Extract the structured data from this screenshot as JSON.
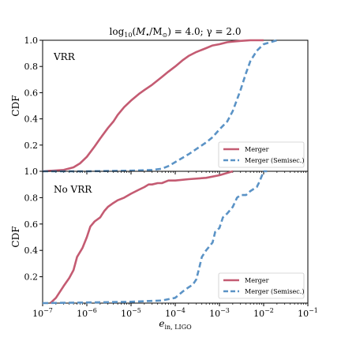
{
  "chart_data": [
    {
      "type": "line",
      "panel": "top",
      "title": "log10(M•/M⊙) = 4.0; γ = 2.0",
      "title_parts": {
        "log": "log",
        "log_sub": "10",
        "open": "(",
        "M": "M",
        "bullet": "•",
        "slash": "/M",
        "sun": "⊙",
        "rest": ") = 4.0; γ = 2.0"
      },
      "annotation": "VRR",
      "ylabel": "CDF",
      "xscale": "log",
      "xlim": [
        1e-07,
        0.1
      ],
      "ylim": [
        0.0,
        1.0
      ],
      "yticks": [
        "0.2",
        "0.4",
        "0.6",
        "0.8",
        "1.0"
      ],
      "legend": {
        "placement": "lower-right",
        "entries": [
          "Merger",
          "Merger (Semisec.)"
        ]
      },
      "colors": {
        "merger": "#c45b72",
        "semisec": "#5b93c6"
      },
      "series": [
        {
          "name": "Merger",
          "style": "solid",
          "x": [
            1e-07,
            3e-07,
            5e-07,
            7e-07,
            1e-06,
            1.5e-06,
            2e-06,
            3e-06,
            4e-06,
            5e-06,
            7e-06,
            1e-05,
            1.5e-05,
            2e-05,
            3e-05,
            5e-05,
            7e-05,
            0.0001,
            0.00015,
            0.0002,
            0.0003,
            0.0005,
            0.0007,
            0.001,
            0.0015,
            0.002,
            0.003,
            0.005,
            0.007,
            0.01
          ],
          "y": [
            0.0,
            0.01,
            0.03,
            0.06,
            0.11,
            0.19,
            0.25,
            0.33,
            0.38,
            0.43,
            0.49,
            0.54,
            0.59,
            0.62,
            0.66,
            0.72,
            0.76,
            0.8,
            0.85,
            0.88,
            0.91,
            0.94,
            0.96,
            0.97,
            0.985,
            0.99,
            0.995,
            1.0,
            1.0,
            1.0
          ]
        },
        {
          "name": "Merger (Semisec.)",
          "style": "dashed",
          "x": [
            1e-07,
            1e-06,
            1e-05,
            3e-05,
            5e-05,
            7e-05,
            0.0001,
            0.0002,
            0.0003,
            0.0005,
            0.0007,
            0.001,
            0.0015,
            0.002,
            0.003,
            0.004,
            0.005,
            0.007,
            0.01,
            0.02
          ],
          "y": [
            0.0,
            0.0,
            0.005,
            0.01,
            0.02,
            0.04,
            0.07,
            0.13,
            0.17,
            0.22,
            0.26,
            0.32,
            0.38,
            0.46,
            0.62,
            0.75,
            0.84,
            0.92,
            0.97,
            1.0
          ]
        }
      ]
    },
    {
      "type": "line",
      "panel": "bottom",
      "annotation": "No VRR",
      "ylabel": "CDF",
      "xlabel": "e_in,LIGO",
      "xlabel_parts": {
        "main": "e",
        "sub": "in, LIGO"
      },
      "xscale": "log",
      "xlim": [
        1e-07,
        0.1
      ],
      "ylim": [
        0.0,
        1.0
      ],
      "xticks": [
        {
          "base": "10",
          "exp": "−7"
        },
        {
          "base": "10",
          "exp": "−6"
        },
        {
          "base": "10",
          "exp": "−5"
        },
        {
          "base": "10",
          "exp": "−4"
        },
        {
          "base": "10",
          "exp": "−3"
        },
        {
          "base": "10",
          "exp": "−2"
        },
        {
          "base": "10",
          "exp": "−1"
        }
      ],
      "yticks": [
        "0.2",
        "0.4",
        "0.6",
        "0.8",
        "1.0"
      ],
      "legend": {
        "placement": "lower-right",
        "entries": [
          "Merger",
          "Merger (Semisec.)"
        ]
      },
      "series": [
        {
          "name": "Merger",
          "style": "solid",
          "x": [
            1.5e-07,
            2e-07,
            3e-07,
            4e-07,
            5e-07,
            6e-07,
            8e-07,
            1e-06,
            1.2e-06,
            1.5e-06,
            2e-06,
            2.5e-06,
            3e-06,
            4e-06,
            5e-06,
            7e-06,
            1e-05,
            1.5e-05,
            2e-05,
            2.5e-05,
            3e-05,
            4e-05,
            5e-05,
            7e-05,
            0.0001,
            0.0002,
            0.0005,
            0.001,
            0.002
          ],
          "y": [
            0.0,
            0.04,
            0.13,
            0.19,
            0.25,
            0.35,
            0.42,
            0.5,
            0.58,
            0.62,
            0.65,
            0.7,
            0.73,
            0.76,
            0.78,
            0.8,
            0.83,
            0.86,
            0.88,
            0.9,
            0.9,
            0.91,
            0.91,
            0.93,
            0.93,
            0.94,
            0.95,
            0.97,
            1.0
          ]
        },
        {
          "name": "Merger (Semisec.)",
          "style": "dashed",
          "x": [
            1e-07,
            1e-06,
            1e-05,
            5e-05,
            0.0001,
            0.00015,
            0.0002,
            0.00025,
            0.0003,
            0.00035,
            0.0004,
            0.0005,
            0.0007,
            0.0008,
            0.001,
            0.0012,
            0.0015,
            0.002,
            0.0025,
            0.003,
            0.004,
            0.005,
            0.007,
            0.008,
            0.01,
            0.012
          ],
          "y": [
            0.0,
            0.005,
            0.01,
            0.02,
            0.04,
            0.09,
            0.12,
            0.14,
            0.18,
            0.27,
            0.35,
            0.4,
            0.46,
            0.54,
            0.57,
            0.65,
            0.68,
            0.73,
            0.8,
            0.82,
            0.82,
            0.85,
            0.88,
            0.92,
            1.0,
            1.0
          ]
        }
      ]
    }
  ]
}
